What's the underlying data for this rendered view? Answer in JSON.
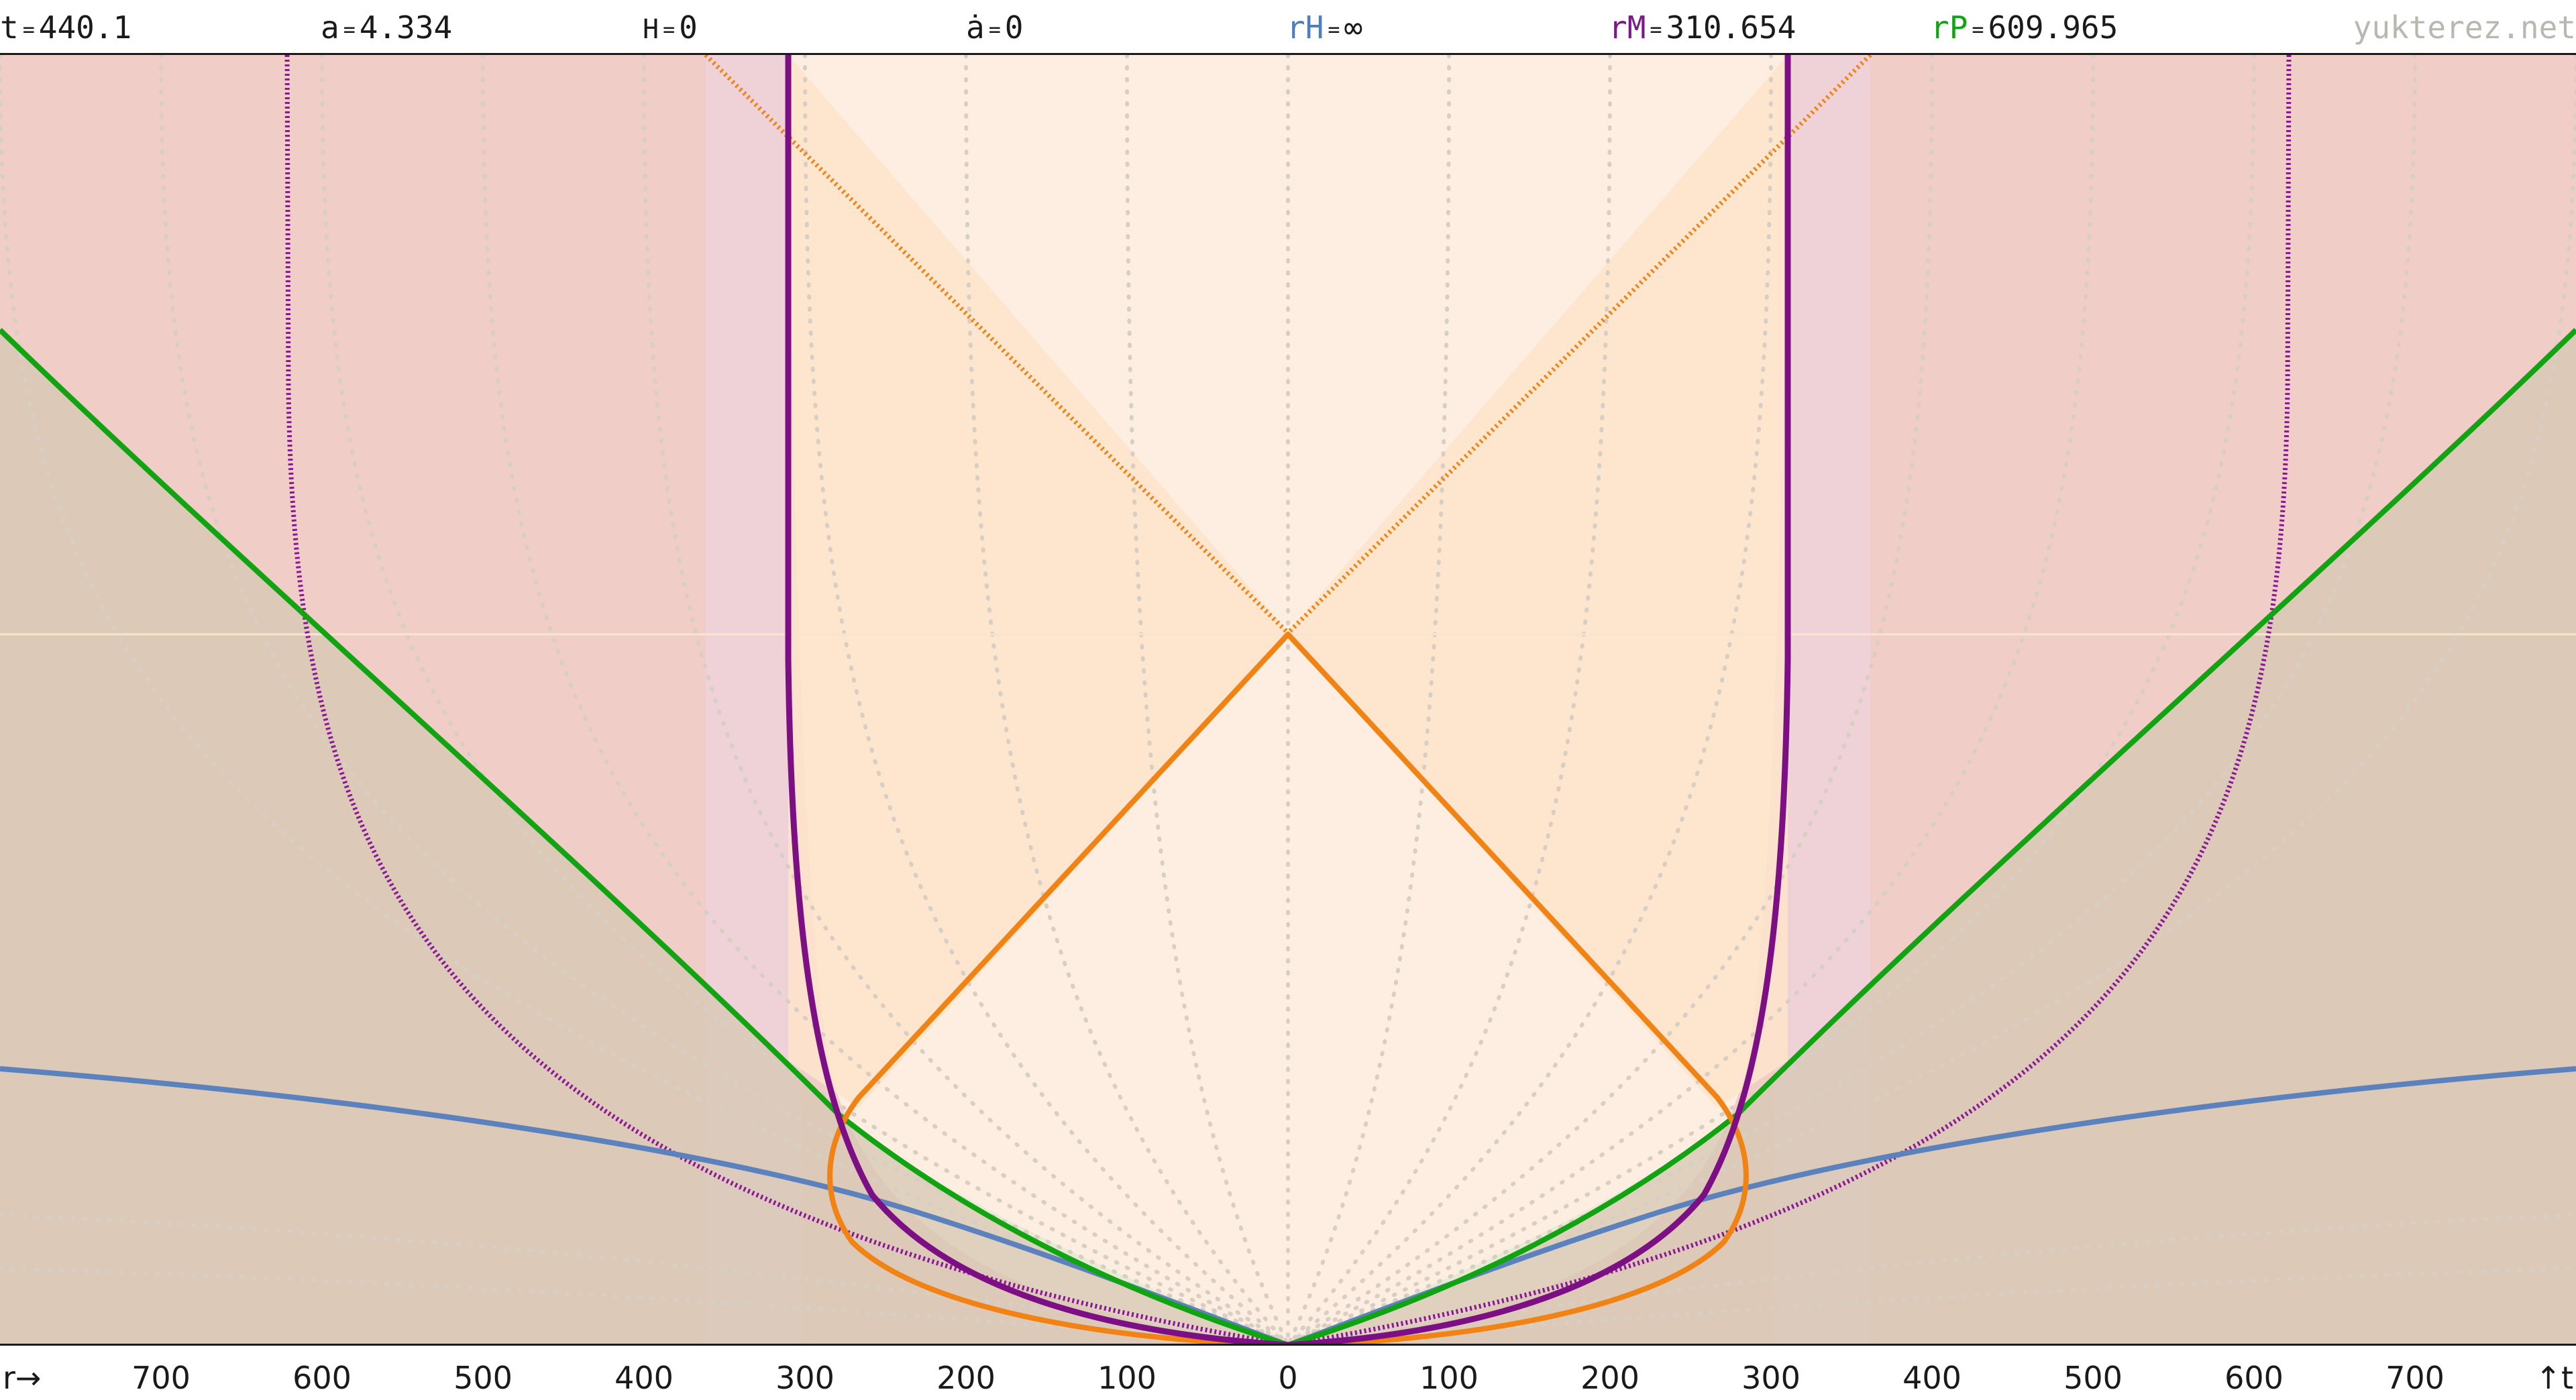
{
  "header": {
    "stats": [
      {
        "key": "t",
        "name": "t",
        "eq": "=",
        "value": "440.1",
        "color": "#1a1a1a"
      },
      {
        "key": "a",
        "name": "a",
        "eq": "=",
        "value": "4.334",
        "color": "#1a1a1a"
      },
      {
        "key": "H",
        "name": "H",
        "eq": "=",
        "value": "0",
        "color": "#1a1a1a"
      },
      {
        "key": "adot",
        "name": "ȧ",
        "eq": "=",
        "value": "0",
        "color": "#1a1a1a"
      },
      {
        "key": "rH",
        "name": "rH",
        "eq": "=",
        "value": "∞",
        "color": "#4f7dbd"
      },
      {
        "key": "rM",
        "name": "rM",
        "eq": "=",
        "value": "310.654",
        "color": "#7a1a86"
      },
      {
        "key": "rP",
        "name": "rP",
        "eq": "=",
        "value": "609.965",
        "color": "#16a016"
      }
    ],
    "site": "yukterez.net"
  },
  "axis": {
    "left_label": "r→",
    "right_label": "↑t",
    "ticks": [
      "700",
      "600",
      "500",
      "400",
      "300",
      "200",
      "100",
      "0",
      "100",
      "200",
      "300",
      "400",
      "500",
      "600",
      "700"
    ]
  },
  "colors": {
    "region_outer": "#f0cdc6",
    "region_light": "#fdeee1",
    "region_orange": "#fde3cc",
    "region_green": "#e6ecd2",
    "region_blue": "#d3c5b0",
    "orange": "#f08313",
    "orange_dark": "#d27a0f",
    "purple": "#7c0f84",
    "green": "#12a312",
    "blue": "#5b82bd",
    "grid": "#d8cfc4"
  }
}
